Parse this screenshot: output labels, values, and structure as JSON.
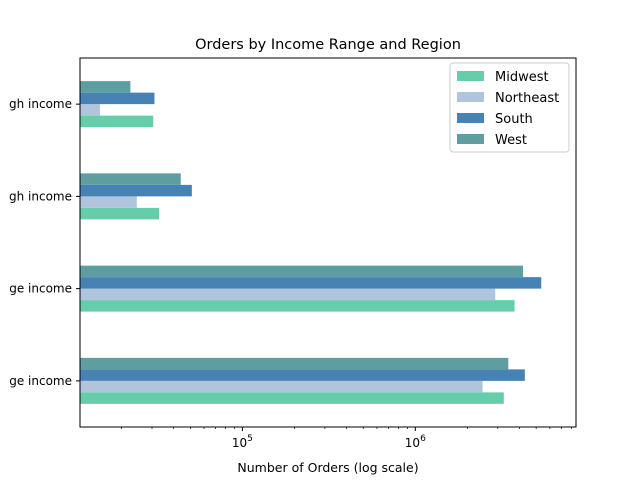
{
  "chart_data": {
    "type": "bar",
    "orientation": "horizontal",
    "title": "Orders by Income Range and Region",
    "xlabel": "Number of Orders (log scale)",
    "ylabel": "",
    "x_scale": "log",
    "xlim": [
      11500,
      8500000
    ],
    "x_major_ticks": [
      {
        "value": 100000,
        "base": "10",
        "exp": "5"
      },
      {
        "value": 1000000,
        "base": "10",
        "exp": "6"
      }
    ],
    "categories": [
      "Low/Middle income",
      "Upper-middle income",
      "High income",
      "Very high income"
    ],
    "category_labels_visible": [
      "ge income",
      "ge income",
      "gh income",
      "gh income"
    ],
    "series": [
      {
        "name": "Midwest",
        "color": "#66cdaa",
        "values": [
          3250000,
          3750000,
          33000,
          30500
        ]
      },
      {
        "name": "Northeast",
        "color": "#b0c4de",
        "values": [
          2450000,
          2900000,
          24500,
          15000
        ]
      },
      {
        "name": "South",
        "color": "#4682b4",
        "values": [
          4300000,
          5350000,
          51000,
          31000
        ]
      },
      {
        "name": "West",
        "color": "#5f9ea0",
        "values": [
          3450000,
          4200000,
          44000,
          22500
        ]
      }
    ],
    "legend": {
      "position": "top-right"
    },
    "grid": false
  }
}
